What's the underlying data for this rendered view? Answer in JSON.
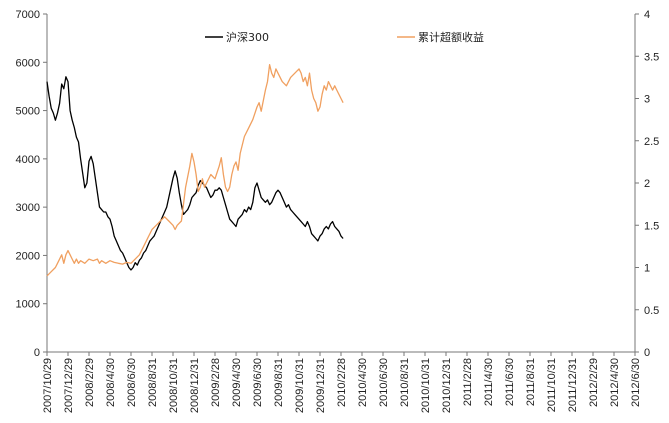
{
  "chart_data": {
    "type": "line",
    "title": "",
    "xlabel": "",
    "ylabel_left": "",
    "ylabel_right": "",
    "x_tick_labels": [
      "2007/10/29",
      "2007/12/29",
      "2008/2/29",
      "2008/4/30",
      "2008/6/30",
      "2008/8/31",
      "2008/10/31",
      "2008/12/31",
      "2009/2/28",
      "2009/4/30",
      "2009/6/30",
      "2009/8/31",
      "2009/10/31",
      "2009/12/31",
      "2010/2/28",
      "2010/4/30",
      "2010/6/30",
      "2010/8/31",
      "2010/10/31",
      "2010/12/31",
      "2011/2/28",
      "2011/4/30",
      "2011/6/30",
      "2011/8/31",
      "2011/10/31",
      "2011/12/31",
      "2012/2/29",
      "2012/4/30",
      "2012/6/30"
    ],
    "y_left": {
      "ticks": [
        "0",
        "1000",
        "2000",
        "3000",
        "4000",
        "5000",
        "6000",
        "7000"
      ],
      "ylim": [
        0,
        7000
      ]
    },
    "y_right": {
      "ticks": [
        "0",
        "0.5",
        "1",
        "1.5",
        "2",
        "2.5",
        "3",
        "3.5",
        "4"
      ],
      "ylim": [
        0,
        4
      ]
    },
    "series": [
      {
        "name": "沪深300",
        "axis": "left",
        "color": "#000000",
        "points": [
          [
            0,
            5600
          ],
          [
            0.1,
            5300
          ],
          [
            0.2,
            5050
          ],
          [
            0.3,
            4950
          ],
          [
            0.4,
            4800
          ],
          [
            0.5,
            4950
          ],
          [
            0.6,
            5150
          ],
          [
            0.7,
            5550
          ],
          [
            0.8,
            5450
          ],
          [
            0.9,
            5700
          ],
          [
            1.0,
            5600
          ],
          [
            1.1,
            5000
          ],
          [
            1.2,
            4800
          ],
          [
            1.3,
            4650
          ],
          [
            1.4,
            4450
          ],
          [
            1.5,
            4350
          ],
          [
            1.6,
            4000
          ],
          [
            1.7,
            3700
          ],
          [
            1.8,
            3400
          ],
          [
            1.9,
            3500
          ],
          [
            2.0,
            3950
          ],
          [
            2.1,
            4050
          ],
          [
            2.2,
            3900
          ],
          [
            2.3,
            3600
          ],
          [
            2.4,
            3300
          ],
          [
            2.5,
            3000
          ],
          [
            2.6,
            2950
          ],
          [
            2.7,
            2900
          ],
          [
            2.8,
            2900
          ],
          [
            2.9,
            2800
          ],
          [
            3.0,
            2750
          ],
          [
            3.1,
            2600
          ],
          [
            3.2,
            2400
          ],
          [
            3.3,
            2300
          ],
          [
            3.4,
            2200
          ],
          [
            3.5,
            2100
          ],
          [
            3.6,
            2050
          ],
          [
            3.7,
            1950
          ],
          [
            3.8,
            1850
          ],
          [
            3.9,
            1750
          ],
          [
            4.0,
            1700
          ],
          [
            4.1,
            1750
          ],
          [
            4.2,
            1850
          ],
          [
            4.3,
            1800
          ],
          [
            4.4,
            1900
          ],
          [
            4.5,
            1950
          ],
          [
            4.6,
            2050
          ],
          [
            4.7,
            2100
          ],
          [
            4.8,
            2200
          ],
          [
            4.9,
            2300
          ],
          [
            5.0,
            2350
          ],
          [
            5.1,
            2400
          ],
          [
            5.2,
            2500
          ],
          [
            5.3,
            2600
          ],
          [
            5.4,
            2700
          ],
          [
            5.5,
            2800
          ],
          [
            5.6,
            2900
          ],
          [
            5.7,
            3000
          ],
          [
            5.8,
            3200
          ],
          [
            5.9,
            3400
          ],
          [
            6.0,
            3600
          ],
          [
            6.1,
            3750
          ],
          [
            6.2,
            3600
          ],
          [
            6.3,
            3300
          ],
          [
            6.4,
            3050
          ],
          [
            6.5,
            2850
          ],
          [
            6.6,
            2900
          ],
          [
            6.7,
            2950
          ],
          [
            6.8,
            3050
          ],
          [
            6.9,
            3200
          ],
          [
            7.0,
            3250
          ],
          [
            7.1,
            3300
          ],
          [
            7.2,
            3450
          ],
          [
            7.3,
            3550
          ],
          [
            7.4,
            3500
          ],
          [
            7.5,
            3450
          ],
          [
            7.6,
            3400
          ],
          [
            7.7,
            3300
          ],
          [
            7.8,
            3200
          ],
          [
            7.9,
            3250
          ],
          [
            8.0,
            3350
          ],
          [
            8.1,
            3350
          ],
          [
            8.2,
            3400
          ],
          [
            8.3,
            3350
          ],
          [
            8.4,
            3200
          ],
          [
            8.5,
            3050
          ],
          [
            8.6,
            2900
          ],
          [
            8.7,
            2750
          ],
          [
            8.8,
            2700
          ],
          [
            8.9,
            2650
          ],
          [
            9.0,
            2600
          ],
          [
            9.1,
            2750
          ],
          [
            9.2,
            2800
          ],
          [
            9.3,
            2850
          ],
          [
            9.4,
            2950
          ],
          [
            9.5,
            2900
          ],
          [
            9.6,
            3000
          ],
          [
            9.7,
            2950
          ],
          [
            9.8,
            3100
          ],
          [
            9.9,
            3400
          ],
          [
            10.0,
            3500
          ],
          [
            10.1,
            3350
          ],
          [
            10.2,
            3200
          ],
          [
            10.3,
            3150
          ],
          [
            10.4,
            3100
          ],
          [
            10.5,
            3150
          ],
          [
            10.6,
            3050
          ],
          [
            10.7,
            3100
          ],
          [
            10.8,
            3200
          ],
          [
            10.9,
            3300
          ],
          [
            11.0,
            3350
          ],
          [
            11.1,
            3300
          ],
          [
            11.2,
            3200
          ],
          [
            11.3,
            3100
          ],
          [
            11.4,
            3000
          ],
          [
            11.5,
            3050
          ],
          [
            11.6,
            2950
          ],
          [
            11.7,
            2900
          ],
          [
            11.8,
            2850
          ],
          [
            11.9,
            2800
          ],
          [
            12.0,
            2750
          ],
          [
            12.1,
            2700
          ],
          [
            12.2,
            2650
          ],
          [
            12.3,
            2600
          ],
          [
            12.4,
            2700
          ],
          [
            12.5,
            2600
          ],
          [
            12.6,
            2450
          ],
          [
            12.7,
            2400
          ],
          [
            12.8,
            2350
          ],
          [
            12.9,
            2300
          ],
          [
            13.0,
            2400
          ],
          [
            13.1,
            2450
          ],
          [
            13.2,
            2550
          ],
          [
            13.3,
            2600
          ],
          [
            13.4,
            2550
          ],
          [
            13.5,
            2650
          ],
          [
            13.6,
            2700
          ],
          [
            13.7,
            2600
          ],
          [
            13.8,
            2550
          ],
          [
            13.9,
            2500
          ],
          [
            14.0,
            2400
          ],
          [
            14.1,
            2350
          ]
        ]
      },
      {
        "name": "累计超额收益",
        "axis": "right",
        "color": "#f0a060",
        "points": [
          [
            0,
            0.9
          ],
          [
            0.2,
            0.95
          ],
          [
            0.4,
            1.0
          ],
          [
            0.5,
            1.05
          ],
          [
            0.6,
            1.1
          ],
          [
            0.7,
            1.15
          ],
          [
            0.8,
            1.05
          ],
          [
            0.9,
            1.15
          ],
          [
            1.0,
            1.2
          ],
          [
            1.1,
            1.15
          ],
          [
            1.2,
            1.1
          ],
          [
            1.3,
            1.05
          ],
          [
            1.4,
            1.1
          ],
          [
            1.5,
            1.05
          ],
          [
            1.6,
            1.08
          ],
          [
            1.8,
            1.05
          ],
          [
            2.0,
            1.1
          ],
          [
            2.2,
            1.08
          ],
          [
            2.4,
            1.1
          ],
          [
            2.5,
            1.05
          ],
          [
            2.6,
            1.08
          ],
          [
            2.8,
            1.05
          ],
          [
            3.0,
            1.08
          ],
          [
            3.2,
            1.06
          ],
          [
            3.4,
            1.05
          ],
          [
            3.6,
            1.04
          ],
          [
            3.8,
            1.06
          ],
          [
            4.0,
            1.05
          ],
          [
            4.2,
            1.1
          ],
          [
            4.4,
            1.15
          ],
          [
            4.6,
            1.25
          ],
          [
            4.8,
            1.35
          ],
          [
            5.0,
            1.45
          ],
          [
            5.2,
            1.5
          ],
          [
            5.4,
            1.55
          ],
          [
            5.6,
            1.6
          ],
          [
            5.8,
            1.55
          ],
          [
            6.0,
            1.5
          ],
          [
            6.1,
            1.45
          ],
          [
            6.2,
            1.5
          ],
          [
            6.4,
            1.55
          ],
          [
            6.6,
            1.95
          ],
          [
            6.8,
            2.2
          ],
          [
            6.9,
            2.35
          ],
          [
            7.0,
            2.25
          ],
          [
            7.1,
            2.1
          ],
          [
            7.2,
            1.9
          ],
          [
            7.3,
            1.95
          ],
          [
            7.4,
            2.05
          ],
          [
            7.5,
            1.95
          ],
          [
            7.6,
            2.0
          ],
          [
            7.8,
            2.1
          ],
          [
            8.0,
            2.05
          ],
          [
            8.2,
            2.2
          ],
          [
            8.3,
            2.3
          ],
          [
            8.4,
            2.1
          ],
          [
            8.5,
            1.95
          ],
          [
            8.6,
            1.9
          ],
          [
            8.7,
            1.95
          ],
          [
            8.8,
            2.1
          ],
          [
            8.9,
            2.2
          ],
          [
            9.0,
            2.25
          ],
          [
            9.1,
            2.15
          ],
          [
            9.2,
            2.35
          ],
          [
            9.4,
            2.55
          ],
          [
            9.6,
            2.65
          ],
          [
            9.8,
            2.75
          ],
          [
            10.0,
            2.9
          ],
          [
            10.1,
            2.95
          ],
          [
            10.2,
            2.85
          ],
          [
            10.4,
            3.1
          ],
          [
            10.5,
            3.2
          ],
          [
            10.6,
            3.4
          ],
          [
            10.7,
            3.3
          ],
          [
            10.8,
            3.25
          ],
          [
            10.9,
            3.35
          ],
          [
            11.0,
            3.3
          ],
          [
            11.2,
            3.2
          ],
          [
            11.4,
            3.15
          ],
          [
            11.6,
            3.25
          ],
          [
            11.8,
            3.3
          ],
          [
            12.0,
            3.35
          ],
          [
            12.1,
            3.3
          ],
          [
            12.2,
            3.2
          ],
          [
            12.3,
            3.25
          ],
          [
            12.4,
            3.15
          ],
          [
            12.5,
            3.3
          ],
          [
            12.6,
            3.1
          ],
          [
            12.7,
            3.0
          ],
          [
            12.8,
            2.95
          ],
          [
            12.9,
            2.85
          ],
          [
            13.0,
            2.9
          ],
          [
            13.1,
            3.05
          ],
          [
            13.2,
            3.15
          ],
          [
            13.3,
            3.1
          ],
          [
            13.4,
            3.2
          ],
          [
            13.5,
            3.15
          ],
          [
            13.6,
            3.1
          ],
          [
            13.7,
            3.15
          ],
          [
            13.8,
            3.1
          ],
          [
            13.9,
            3.05
          ],
          [
            14.0,
            3.0
          ],
          [
            14.1,
            2.95
          ]
        ]
      }
    ],
    "legend": [
      {
        "label": "沪深300",
        "color": "#000000"
      },
      {
        "label": "累计超额收益",
        "color": "#f0a060"
      }
    ],
    "grid": false,
    "legend_position": "top"
  }
}
